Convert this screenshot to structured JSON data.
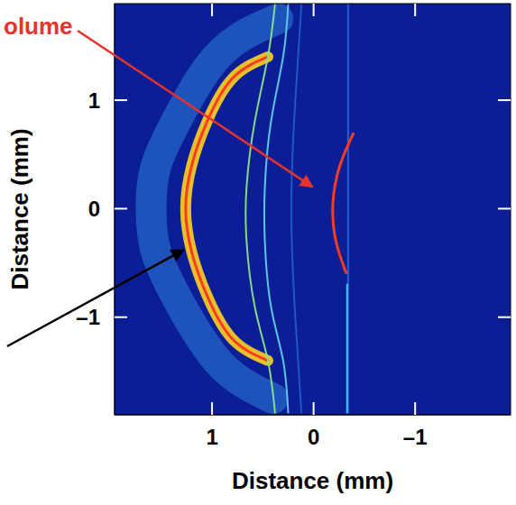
{
  "chart_data": {
    "type": "line",
    "xlabel": "Distance (mm)",
    "ylabel": "Distance (mm)",
    "xlim": [
      1.96,
      -1.94
    ],
    "ylim": [
      -1.9,
      1.89
    ],
    "xticks": [
      1,
      0,
      {
        "value": -1,
        "label": "–1"
      }
    ],
    "yticks": [
      1,
      0,
      {
        "value": -1,
        "label": "–1"
      }
    ],
    "grid": false,
    "color": "#0b1e96",
    "series": [
      {
        "color": "#3fb8ff",
        "line_style": "halo",
        "x": [
          0.35,
          0.9,
          1.3,
          1.55,
          1.6,
          1.55,
          1.3,
          0.9,
          0.4
        ],
        "values": [
          1.75,
          1.45,
          0.9,
          0.4,
          0,
          -0.4,
          -0.9,
          -1.45,
          -1.75
        ]
      },
      {
        "color": "#ffd21f",
        "line_style": "band",
        "x": [
          0.45,
          0.8,
          1.05,
          1.2,
          1.26,
          1.2,
          1.05,
          0.8,
          0.45
        ],
        "values": [
          1.4,
          1.2,
          0.8,
          0.4,
          0,
          -0.4,
          -0.8,
          -1.2,
          -1.4
        ]
      },
      {
        "color": "#ff3b1f",
        "line_style": "solid",
        "x": [
          0.45,
          0.8,
          1.05,
          1.2,
          1.26,
          1.2,
          1.05,
          0.8,
          0.45
        ],
        "values": [
          1.4,
          1.2,
          0.8,
          0.4,
          0,
          -0.4,
          -0.8,
          -1.2,
          -1.4
        ]
      },
      {
        "color": "#8fe08a",
        "line_style": "thin",
        "x": [
          0.38,
          0.45,
          0.58,
          0.66,
          0.66,
          0.58,
          0.45,
          0.38
        ],
        "values": [
          1.88,
          1.4,
          0.8,
          0.2,
          -0.3,
          -0.9,
          -1.4,
          -1.88
        ]
      },
      {
        "color": "#5fd0e8",
        "line_style": "thin",
        "x": [
          0.25,
          0.3,
          0.42,
          0.48,
          0.48,
          0.42,
          0.3,
          0.25
        ],
        "values": [
          1.88,
          1.4,
          0.8,
          0.2,
          -0.3,
          -0.9,
          -1.4,
          -1.88
        ]
      },
      {
        "color": "#2f7fe0",
        "line_style": "faint",
        "x": [
          0.12,
          0.18,
          0.22,
          0.18,
          0.12
        ],
        "values": [
          1.88,
          1,
          0,
          -1,
          -1.88
        ]
      },
      {
        "color": "#3a86ff",
        "line_style": "faint",
        "x": [
          -0.34,
          -0.34,
          -0.34
        ],
        "values": [
          1.88,
          0,
          -1.88
        ]
      },
      {
        "color": "#49c8ff",
        "line_style": "thin",
        "x": [
          -0.33,
          -0.33,
          -0.33
        ],
        "values": [
          -0.7,
          -1.3,
          -1.88
        ]
      },
      {
        "color": "#ff3b1f",
        "line_style": "solid",
        "x": [
          -0.39,
          -0.26,
          -0.19,
          -0.22,
          -0.32
        ],
        "values": [
          0.69,
          0.4,
          0.05,
          -0.3,
          -0.59
        ]
      }
    ],
    "annotations": [
      {
        "text": "olume",
        "color": "#e8332a",
        "target": [
          0.01,
          0.2
        ]
      },
      {
        "color": "#000000",
        "target": [
          1.28,
          -0.38
        ]
      }
    ]
  }
}
